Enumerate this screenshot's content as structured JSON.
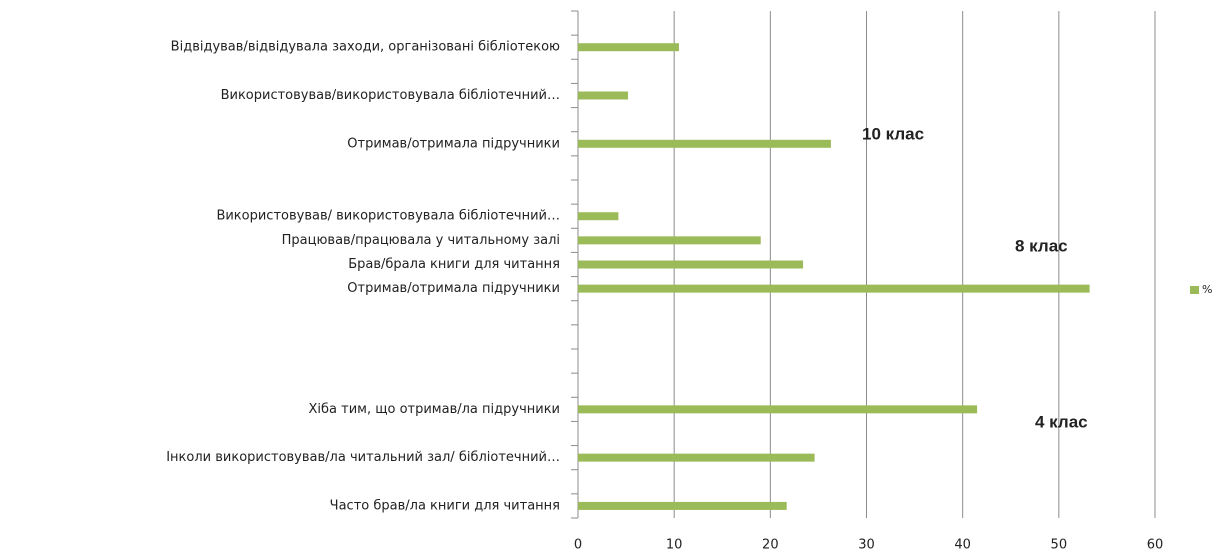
{
  "chart_data": {
    "type": "bar",
    "orientation": "horizontal",
    "categories": [
      null,
      "Відвідував/відвідувала заходи, організовані бібліотекою",
      null,
      "Використовував/використовувала  бібліотечний…",
      null,
      "Отримав/отримала  підручники",
      null,
      null,
      "Використовував/  використовувала бібліотечний…",
      "Працював/працювала у читальному залі",
      "Брав/брала книги для читання",
      "Отримав/отримала  підручники",
      null,
      null,
      null,
      null,
      "Хіба тим, що отримав/ла  підручники",
      null,
      "Інколи використовував/ла читальний зал/ бібліотечний…",
      null,
      "Часто брав/ла книги для читання"
    ],
    "series": [
      {
        "name": "%",
        "color": "#9bbb59",
        "values": [
          null,
          10.5,
          null,
          5.2,
          null,
          26.3,
          null,
          null,
          4.2,
          19,
          23.4,
          53.2,
          null,
          null,
          null,
          null,
          41.5,
          null,
          24.6,
          null,
          21.7
        ]
      }
    ],
    "xlim": [
      0,
      60
    ],
    "xticks": [
      0,
      10,
      20,
      30,
      40,
      50,
      60
    ],
    "grid": true,
    "legend": "right",
    "annotations": [
      "10 клас",
      "8 клас",
      "4 клас"
    ]
  }
}
